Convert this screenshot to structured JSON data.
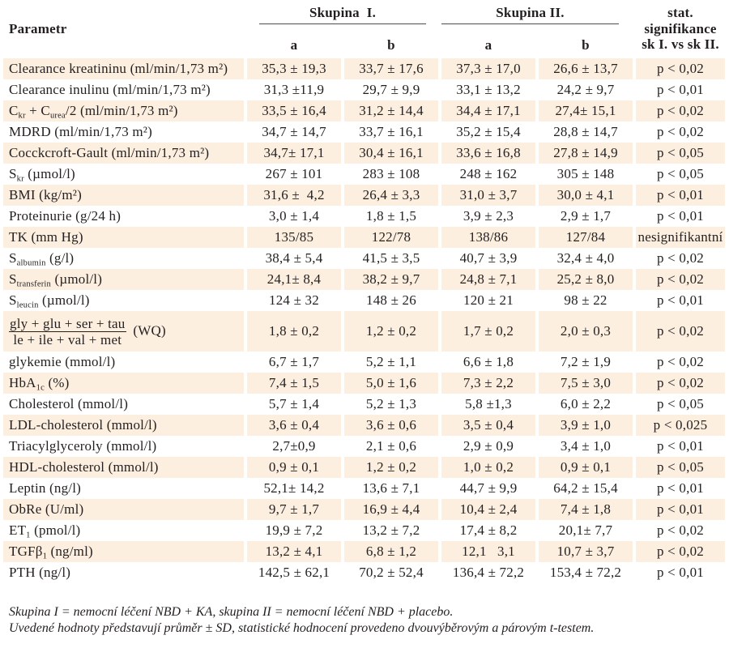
{
  "header": {
    "parameter": "Parametr",
    "group1": "Skupina  I.",
    "group2": "Skupina II.",
    "subcolumns": [
      "a",
      "b",
      "a",
      "b"
    ],
    "stat": [
      "stat.",
      "signifikance",
      "sk I. vs sk II."
    ]
  },
  "rows": [
    {
      "label": [
        {
          "text": "Clearance kreatininu (ml/min/1,73 m²)"
        }
      ],
      "g1a": "35,3 ± 19,3",
      "g1b": "33,7 ± 17,6",
      "g2a": "37,3 ± 17,0",
      "g2b": "26,6 ± 13,7",
      "p": "p < 0,02"
    },
    {
      "label": [
        {
          "text": "Clearance inulinu (ml/min/1,73 m²)"
        }
      ],
      "g1a": "31,3 ±11,9",
      "g1b": "29,7 ± 9,9",
      "g2a": "33,1 ± 13,2",
      "g2b": "24,2 ± 9,7",
      "p": "p < 0,01"
    },
    {
      "label": [
        {
          "text": "C"
        },
        {
          "sub": "kr"
        },
        {
          "text": " + C"
        },
        {
          "sub": "urea"
        },
        {
          "text": "/2 (ml/min/1,73 m²)"
        }
      ],
      "g1a": "33,5 ± 16,4",
      "g1b": "31,2 ± 14,4",
      "g2a": "34,4 ± 17,1",
      "g2b": "27,4± 15,1",
      "p": "p < 0,02"
    },
    {
      "label": [
        {
          "text": "MDRD (ml/min/1,73 m²)"
        }
      ],
      "g1a": "34,7 ± 14,7",
      "g1b": "33,7 ± 16,1",
      "g2a": "35,2 ± 15,4",
      "g2b": "28,8 ± 14,7",
      "p": "p < 0,02"
    },
    {
      "label": [
        {
          "text": "Cocckcroft-Gault (ml/min/1,73 m²)"
        }
      ],
      "g1a": "34,7± 17,1",
      "g1b": "30,4 ± 16,1",
      "g2a": "33,6 ± 16,8",
      "g2b": "27,8 ± 14,9",
      "p": "p < 0,05"
    },
    {
      "label": [
        {
          "text": "S"
        },
        {
          "sub": "kr"
        },
        {
          "text": " (µmol/l)"
        }
      ],
      "g1a": "267 ± 101",
      "g1b": "283 ± 108",
      "g2a": "248 ± 162",
      "g2b": "305 ± 148",
      "p": "p < 0,05"
    },
    {
      "label": [
        {
          "text": "BMI (kg/m²)"
        }
      ],
      "g1a": "31,6 ±  4,2",
      "g1b": "26,4 ± 3,3",
      "g2a": "31,0 ± 3,7",
      "g2b": "30,0 ± 4,1",
      "p": "p < 0,01"
    },
    {
      "label": [
        {
          "text": "Proteinurie (g/24 h)"
        }
      ],
      "g1a": "3,0 ± 1,4",
      "g1b": "1,8 ± 1,5",
      "g2a": "3,9 ± 2,3",
      "g2b": "2,9 ± 1,7",
      "p": "p < 0,01"
    },
    {
      "label": [
        {
          "text": "TK (mm Hg)"
        }
      ],
      "g1a": "135/85",
      "g1b": "122/78",
      "g2a": "138/86",
      "g2b": "127/84",
      "p": "nesignifikantní"
    },
    {
      "label": [
        {
          "text": "S"
        },
        {
          "sub": "albumin"
        },
        {
          "text": " (g/l)"
        }
      ],
      "g1a": "38,4 ± 5,4",
      "g1b": "41,5 ± 3,5",
      "g2a": "40,7 ± 3,9",
      "g2b": "32,4 ± 4,0",
      "p": "p < 0,02"
    },
    {
      "label": [
        {
          "text": "S"
        },
        {
          "sub": "transferin"
        },
        {
          "text": " (µmol/l)"
        }
      ],
      "g1a": "24,1± 8,4",
      "g1b": "38,2 ± 9,7",
      "g2a": "24,8 ± 7,1",
      "g2b": "25,2 ± 8,0",
      "p": "p < 0,02"
    },
    {
      "label": [
        {
          "text": "S"
        },
        {
          "sub": "leucin"
        },
        {
          "text": " (µmol/l)"
        }
      ],
      "g1a": "124 ± 32",
      "g1b": "148 ± 26",
      "g2a": "120 ± 21",
      "g2b": "98 ± 22",
      "p": "p < 0,01"
    },
    {
      "label": [
        {
          "num": "gly + glu + ser + tau",
          "den": "le + ile + val + met"
        },
        {
          "text": "  (WQ)"
        }
      ],
      "g1a": "1,8 ± 0,2",
      "g1b": "1,2 ± 0,2",
      "g2a": "1,7 ± 0,2",
      "g2b": "2,0 ± 0,3",
      "p": "p < 0,02"
    },
    {
      "label": [
        {
          "text": "glykemie (mmol/l)"
        }
      ],
      "g1a": "6,7 ± 1,7",
      "g1b": "5,2 ± 1,1",
      "g2a": "6,6 ± 1,8",
      "g2b": "7,2 ± 1,9",
      "p": "p < 0,02"
    },
    {
      "label": [
        {
          "text": "HbA"
        },
        {
          "sub": "1c"
        },
        {
          "text": " (%)"
        }
      ],
      "g1a": "7,4 ± 1,5",
      "g1b": "5,0 ± 1,6",
      "g2a": "7,3 ± 2,2",
      "g2b": "7,5 ± 3,0",
      "p": "p < 0,02"
    },
    {
      "label": [
        {
          "text": "Cholesterol (mmol/l)"
        }
      ],
      "g1a": "5,7 ± 1,4",
      "g1b": "5,2 ± 1,3",
      "g2a": "5,8 ±1,3",
      "g2b": "6,0 ± 2,2",
      "p": "p < 0,05"
    },
    {
      "label": [
        {
          "text": "LDL-cholesterol (mmol/l)"
        }
      ],
      "g1a": "3,6 ± 0,4",
      "g1b": "3,6 ± 0,6",
      "g2a": "3,5 ± 0,4",
      "g2b": "3,9 ± 1,0",
      "p": "p < 0,025"
    },
    {
      "label": [
        {
          "text": "Triacylglyceroly (mmol/l)"
        }
      ],
      "g1a": "2,7±0,9",
      "g1b": "2,1 ± 0,6",
      "g2a": "2,9 ± 0,9",
      "g2b": "3,4 ± 1,0",
      "p": "p < 0,01"
    },
    {
      "label": [
        {
          "text": "HDL-cholesterol (mmol/l)"
        }
      ],
      "g1a": "0,9 ± 0,1",
      "g1b": "1,2 ± 0,2",
      "g2a": "1,0 ± 0,2",
      "g2b": "0,9 ± 0,1",
      "p": "p < 0,05"
    },
    {
      "label": [
        {
          "text": "Leptin (ng/l)"
        }
      ],
      "g1a": "52,1± 14,2",
      "g1b": "13,6 ± 7,1",
      "g2a": "44,7 ± 9,9",
      "g2b": "64,2 ± 15,4",
      "p": "p < 0,01"
    },
    {
      "label": [
        {
          "text": "ObRe (U/ml)"
        }
      ],
      "g1a": "9,7 ± 1,7",
      "g1b": "16,9 ± 4,4",
      "g2a": "10,4 ± 2,4",
      "g2b": "7,4 ± 1,8",
      "p": "p < 0,01"
    },
    {
      "label": [
        {
          "text": "ET"
        },
        {
          "sub": "1"
        },
        {
          "text": " (pmol/l)"
        }
      ],
      "g1a": "19,9 ± 7,2",
      "g1b": "13,2 ± 7,2",
      "g2a": "17,4 ± 8,2",
      "g2b": "20,1± 7,7",
      "p": "p < 0,02"
    },
    {
      "label": [
        {
          "text": "TGFβ"
        },
        {
          "sub": "1"
        },
        {
          "text": " (ng/ml)"
        }
      ],
      "g1a": "13,2 ± 4,1",
      "g1b": "6,8 ± 1,2",
      "g2a": "12,1   3,1",
      "g2b": "10,7 ± 3,7",
      "p": "p < 0,02"
    },
    {
      "label": [
        {
          "text": "PTH (ng/l)"
        }
      ],
      "g1a": "142,5 ± 62,1",
      "g1b": "70,2 ± 52,4",
      "g2a": "136,4 ± 72,2",
      "g2b": "153,4 ± 72,2",
      "p": "p < 0,01"
    }
  ],
  "footnotes": [
    "Skupina I = nemocní léčení NBD + KA, skupina II = nemocní léčení NBD + placebo.",
    "Uvedené hodnoty představují průměr ± SD, statistické hodnocení provedeno dvouvýběrovým a párovým t-testem."
  ],
  "colors": {
    "row_shade": "#fcefe0",
    "text": "#231f20",
    "rule": "#4d4d4d"
  }
}
